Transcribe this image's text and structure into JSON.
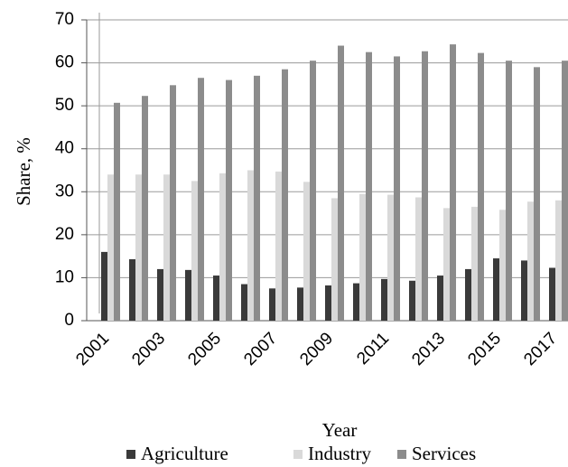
{
  "chart_data": {
    "type": "bar",
    "x_label": "Year",
    "y_label": "Share, %",
    "categories": [
      "2001",
      null,
      "2003",
      null,
      "2005",
      null,
      "2007",
      null,
      "2009",
      null,
      "2011",
      null,
      "2013",
      null,
      "2015",
      null,
      "2017"
    ],
    "series": [
      {
        "name": "Agriculture",
        "color": "#3a3a3a",
        "values": [
          16,
          14.3,
          12,
          11.8,
          10.5,
          8.5,
          7.5,
          7.7,
          8.2,
          8.7,
          9.7,
          9.3,
          10.5,
          12,
          14.5,
          14,
          12.3
        ]
      },
      {
        "name": "Industry",
        "color": "#d9d9d9",
        "values": [
          34,
          34,
          34,
          32.5,
          34.3,
          35,
          34.7,
          32.3,
          28.5,
          29.5,
          29.3,
          28.7,
          26.2,
          26.5,
          25.8,
          27.7,
          28
        ]
      },
      {
        "name": "Services",
        "color": "#8c8c8c",
        "values": [
          50.7,
          52.3,
          54.8,
          56.5,
          56,
          57,
          58.5,
          60.5,
          64,
          62.5,
          61.5,
          62.7,
          64.3,
          62.3,
          60.5,
          59,
          60.5
        ]
      }
    ],
    "ylim": [
      0,
      70
    ],
    "yticks": [
      0,
      10,
      20,
      30,
      40,
      50,
      60,
      70
    ],
    "grid": true,
    "legend": "bottom"
  }
}
